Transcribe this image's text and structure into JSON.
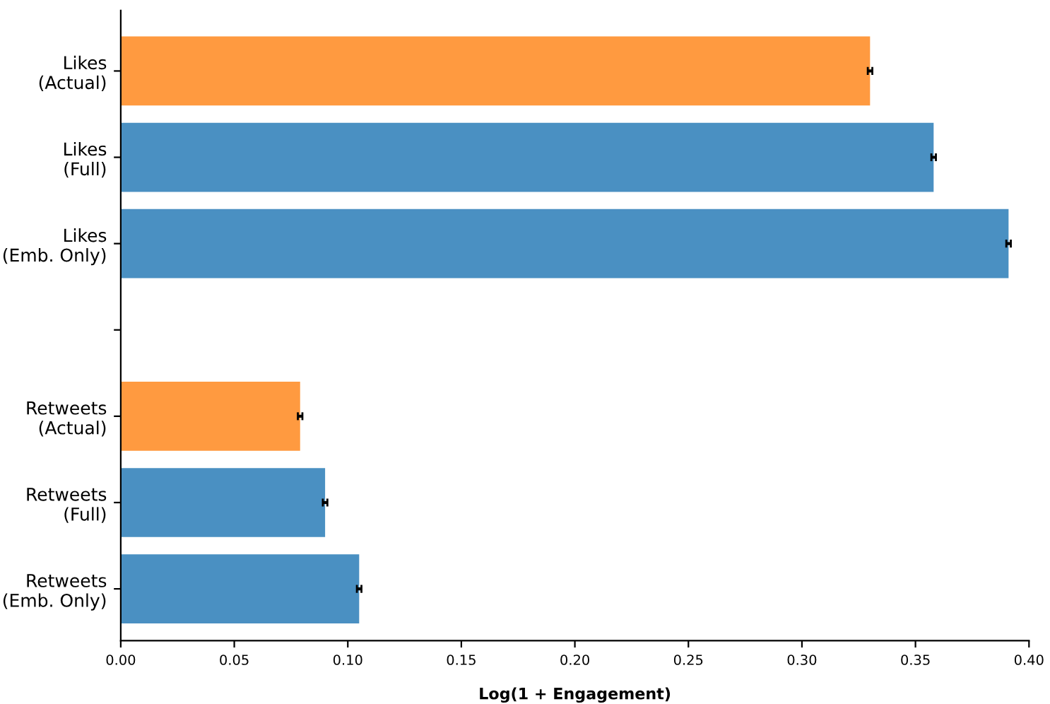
{
  "chart_data": {
    "type": "bar",
    "orientation": "horizontal",
    "categories": [
      "Likes\n(Actual)",
      "Likes\n(Full)",
      "Likes\n(Emb. Only)",
      null,
      "Retweets\n(Actual)",
      "Retweets\n(Full)",
      "Retweets\n(Emb. Only)"
    ],
    "values": [
      0.33,
      0.358,
      0.391,
      null,
      0.079,
      0.09,
      0.105
    ],
    "errors": [
      0.001,
      0.001,
      0.001,
      null,
      0.001,
      0.001,
      0.001
    ],
    "colors": [
      "#ff9a40",
      "#4a90c2",
      "#4a90c2",
      null,
      "#ff9a40",
      "#4a90c2",
      "#4a90c2"
    ],
    "xlabel": "Log(1 + Engagement)",
    "xlim": [
      0,
      0.4
    ],
    "xticks": [
      {
        "value": 0,
        "label": "0.00"
      },
      0.05,
      {
        "value": 0.1,
        "label": "0.10"
      },
      0.15,
      {
        "value": 0.2,
        "label": "0.20"
      },
      0.25,
      {
        "value": 0.3,
        "label": "0.30"
      },
      0.35,
      {
        "value": 0.4,
        "label": "0.40"
      }
    ],
    "grid": false,
    "legend": false
  }
}
